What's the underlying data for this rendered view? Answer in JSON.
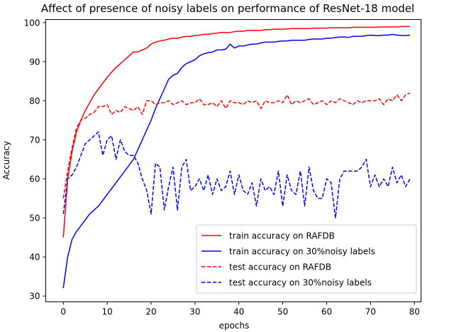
{
  "chart_data": {
    "type": "line",
    "title": "Affect of presence of noisy labels on performance of ResNet-18 model",
    "xlabel": "epochs",
    "ylabel": "Accuracy",
    "xlim": [
      -4,
      81.5
    ],
    "ylim": [
      28.5,
      100.8
    ],
    "xticks": [
      0,
      10,
      20,
      30,
      40,
      50,
      60,
      70,
      80
    ],
    "yticks": [
      30,
      40,
      50,
      60,
      70,
      80,
      90,
      100
    ],
    "grid": false,
    "legend_position": "lower-right",
    "series": [
      {
        "name": "train accuracy on RAFDB",
        "color": "#ff0000",
        "dash": "solid",
        "values": [
          45,
          60,
          67,
          72,
          75,
          77.5,
          79.5,
          81.5,
          83,
          84.5,
          86,
          87.3,
          88.5,
          89.5,
          90.5,
          91.5,
          92.5,
          92.5,
          93,
          93.5,
          94.5,
          95,
          95.3,
          95.5,
          95.8,
          96,
          96,
          96.3,
          96.5,
          96.5,
          96.7,
          96.8,
          97,
          97,
          97.2,
          97.3,
          97.5,
          97.5,
          97.5,
          97.7,
          97.8,
          97.8,
          98,
          98,
          98,
          98,
          98.2,
          98.2,
          98.3,
          98.3,
          98.3,
          98.4,
          98.5,
          98.5,
          98.5,
          98.5,
          98.5,
          98.6,
          98.6,
          98.6,
          98.6,
          98.7,
          98.7,
          98.7,
          98.7,
          98.7,
          98.8,
          98.8,
          98.8,
          98.8,
          98.8,
          98.8,
          98.9,
          98.9,
          98.9,
          98.9,
          98.9,
          99,
          99,
          99
        ]
      },
      {
        "name": "train accuracy on 30%noisy labels",
        "color": "#0000ff",
        "dash": "solid",
        "values": [
          32,
          40,
          44.5,
          46.5,
          48,
          49.5,
          51,
          52,
          53,
          54.5,
          56,
          57.5,
          59,
          60.5,
          62,
          63.5,
          65,
          67.5,
          70,
          72.5,
          75,
          78,
          80.5,
          83,
          85.5,
          86.5,
          87,
          88.5,
          89.5,
          90,
          90.5,
          91.5,
          92,
          92.3,
          92.5,
          93,
          93,
          93.2,
          94.5,
          93.5,
          94,
          94,
          94.3,
          94.5,
          94.5,
          94.8,
          95,
          95,
          95,
          95.2,
          95.3,
          95.3,
          95.5,
          95.5,
          95.5,
          95.5,
          95.7,
          95.8,
          95.8,
          95.8,
          96,
          96,
          96.2,
          96.3,
          96.3,
          96.2,
          96.5,
          96.5,
          96.5,
          96.7,
          96.8,
          96.7,
          96.7,
          96.8,
          96.8,
          97,
          96.8,
          96.7,
          96.7,
          96.8
        ]
      },
      {
        "name": "test accuracy on RAFDB",
        "color": "#ff0000",
        "dash": "dashed",
        "values": [
          55,
          62,
          68,
          73,
          75,
          75.5,
          76.5,
          77,
          78.5,
          78.5,
          79,
          76.5,
          77.5,
          77,
          78.5,
          78,
          77.5,
          78.5,
          76.5,
          80,
          80,
          79,
          79.5,
          79.5,
          80,
          79,
          79.5,
          80,
          79,
          79.5,
          79.5,
          80.5,
          79,
          79,
          79.5,
          78.5,
          80,
          78,
          80,
          79.5,
          79.5,
          79,
          80,
          79.5,
          80,
          78,
          80,
          79.5,
          79.5,
          80,
          79.5,
          81.5,
          79,
          80,
          79.5,
          80,
          80.5,
          79,
          79.5,
          80,
          79,
          80,
          79.5,
          80.5,
          80,
          79.5,
          79,
          80,
          79.5,
          80,
          80,
          80,
          80.5,
          79,
          80.5,
          80,
          81.5,
          80,
          81.5,
          82
        ]
      },
      {
        "name": "test accuracy on 30%noisy labels",
        "color": "#0000ff",
        "dash": "dashed",
        "values": [
          51,
          60,
          61,
          63,
          66,
          69,
          70,
          71,
          72,
          66,
          70,
          71,
          65,
          70,
          67,
          66,
          66,
          64,
          60,
          57,
          51,
          64,
          63,
          52,
          58,
          63,
          52,
          63,
          65,
          57,
          58,
          60,
          57,
          61,
          56,
          60,
          57,
          58,
          62,
          56,
          61,
          57,
          56,
          59,
          53,
          60,
          57,
          58,
          56,
          62,
          53,
          61,
          57,
          56,
          62,
          53,
          63,
          57,
          55,
          55,
          60,
          59,
          50,
          60,
          62,
          62,
          62,
          62,
          63,
          65,
          58,
          61,
          58,
          60,
          58,
          63,
          59,
          61,
          58,
          60
        ]
      }
    ]
  }
}
